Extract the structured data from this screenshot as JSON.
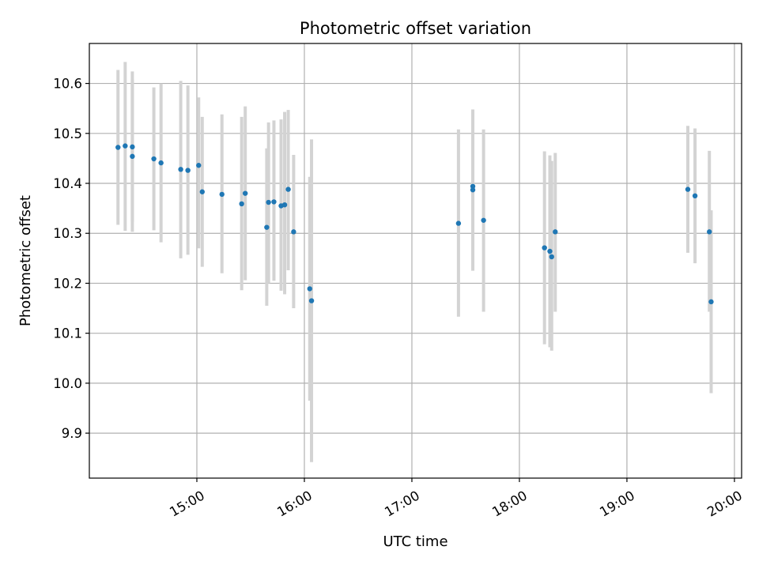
{
  "chart_data": {
    "type": "scatter",
    "title": "Photometric offset variation",
    "xlabel": "UTC time",
    "ylabel": "Photometric offset",
    "xlim": [
      "14:00",
      "20:04"
    ],
    "ylim": [
      9.81,
      10.68
    ],
    "grid": true,
    "x_ticks": [
      "15:00",
      "16:00",
      "17:00",
      "18:00",
      "19:00",
      "20:00"
    ],
    "y_ticks": [
      9.9,
      10.0,
      10.1,
      10.2,
      10.3,
      10.4,
      10.5,
      10.6
    ],
    "series": [
      {
        "marker_color": "#1f77b4",
        "errorbar_color": "#d3d3d3",
        "points": [
          {
            "x": "14:16",
            "y": 10.472,
            "lo": 10.317,
            "hi": 10.627
          },
          {
            "x": "14:20",
            "y": 10.475,
            "lo": 10.305,
            "hi": 10.643
          },
          {
            "x": "14:24",
            "y": 10.454,
            "lo": 10.303,
            "hi": 10.608
          },
          {
            "x": "14:24",
            "y": 10.473,
            "lo": 10.323,
            "hi": 10.624
          },
          {
            "x": "14:36",
            "y": 10.449,
            "lo": 10.306,
            "hi": 10.592
          },
          {
            "x": "14:40",
            "y": 10.441,
            "lo": 10.282,
            "hi": 10.6
          },
          {
            "x": "14:51",
            "y": 10.428,
            "lo": 10.25,
            "hi": 10.605
          },
          {
            "x": "14:55",
            "y": 10.426,
            "lo": 10.257,
            "hi": 10.596
          },
          {
            "x": "15:01",
            "y": 10.436,
            "lo": 10.27,
            "hi": 10.572
          },
          {
            "x": "15:03",
            "y": 10.383,
            "lo": 10.233,
            "hi": 10.533
          },
          {
            "x": "15:14",
            "y": 10.378,
            "lo": 10.22,
            "hi": 10.538
          },
          {
            "x": "15:25",
            "y": 10.359,
            "lo": 10.186,
            "hi": 10.533
          },
          {
            "x": "15:27",
            "y": 10.38,
            "lo": 10.206,
            "hi": 10.554
          },
          {
            "x": "15:39",
            "y": 10.312,
            "lo": 10.155,
            "hi": 10.47
          },
          {
            "x": "15:40",
            "y": 10.362,
            "lo": 10.2,
            "hi": 10.522
          },
          {
            "x": "15:43",
            "y": 10.363,
            "lo": 10.205,
            "hi": 10.526
          },
          {
            "x": "15:47",
            "y": 10.355,
            "lo": 10.185,
            "hi": 10.528
          },
          {
            "x": "15:49",
            "y": 10.357,
            "lo": 10.178,
            "hi": 10.543
          },
          {
            "x": "15:51",
            "y": 10.388,
            "lo": 10.226,
            "hi": 10.547
          },
          {
            "x": "15:54",
            "y": 10.303,
            "lo": 10.15,
            "hi": 10.457
          },
          {
            "x": "16:03",
            "y": 10.189,
            "lo": 9.965,
            "hi": 10.413
          },
          {
            "x": "16:04",
            "y": 10.165,
            "lo": 9.842,
            "hi": 10.488
          },
          {
            "x": "17:26",
            "y": 10.32,
            "lo": 10.133,
            "hi": 10.508
          },
          {
            "x": "17:34",
            "y": 10.394,
            "lo": 10.24,
            "hi": 10.548
          },
          {
            "x": "17:34",
            "y": 10.387,
            "lo": 10.225,
            "hi": 10.525
          },
          {
            "x": "17:40",
            "y": 10.326,
            "lo": 10.143,
            "hi": 10.508
          },
          {
            "x": "18:14",
            "y": 10.271,
            "lo": 10.078,
            "hi": 10.464
          },
          {
            "x": "18:17",
            "y": 10.264,
            "lo": 10.072,
            "hi": 10.456
          },
          {
            "x": "18:18",
            "y": 10.253,
            "lo": 10.065,
            "hi": 10.445
          },
          {
            "x": "18:20",
            "y": 10.303,
            "lo": 10.143,
            "hi": 10.461
          },
          {
            "x": "19:34",
            "y": 10.388,
            "lo": 10.261,
            "hi": 10.515
          },
          {
            "x": "19:38",
            "y": 10.375,
            "lo": 10.24,
            "hi": 10.51
          },
          {
            "x": "19:46",
            "y": 10.303,
            "lo": 10.143,
            "hi": 10.465
          },
          {
            "x": "19:47",
            "y": 10.163,
            "lo": 9.98,
            "hi": 10.346
          }
        ]
      }
    ]
  }
}
